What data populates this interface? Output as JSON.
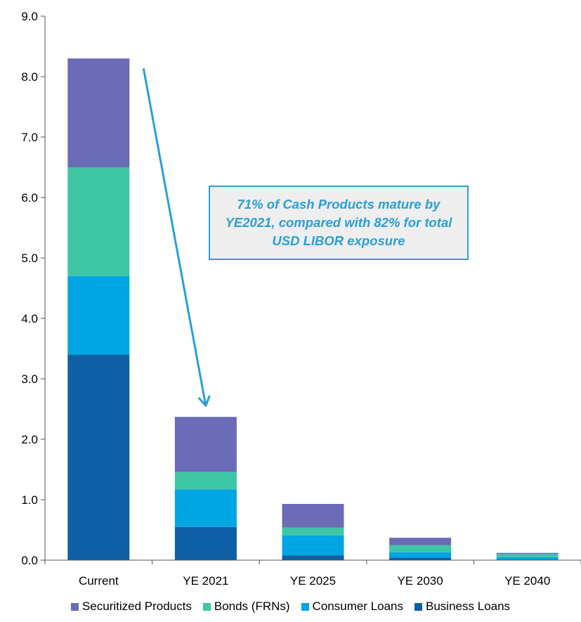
{
  "chart_data": {
    "type": "bar",
    "stacked": true,
    "categories": [
      "Current",
      "YE 2021",
      "YE 2025",
      "YE 2030",
      "YE 2040"
    ],
    "series": [
      {
        "name": "Business Loans",
        "color": "#0f5fa6",
        "values": [
          3.4,
          0.55,
          0.08,
          0.04,
          0.01
        ]
      },
      {
        "name": "Consumer Loans",
        "color": "#00a5e3",
        "values": [
          1.3,
          0.62,
          0.33,
          0.09,
          0.04
        ]
      },
      {
        "name": "Bonds (FRNs)",
        "color": "#3ec6a5",
        "values": [
          1.8,
          0.29,
          0.13,
          0.12,
          0.05
        ]
      },
      {
        "name": "Securitized Products",
        "color": "#6b6bb7",
        "values": [
          1.8,
          0.91,
          0.39,
          0.12,
          0.02
        ]
      }
    ],
    "legend_order": [
      "Securitized Products",
      "Bonds (FRNs)",
      "Consumer Loans",
      "Business Loans"
    ],
    "ylim": [
      0,
      9
    ],
    "yticks": [
      "0.0",
      "1.0",
      "2.0",
      "3.0",
      "4.0",
      "5.0",
      "6.0",
      "7.0",
      "8.0",
      "9.0"
    ],
    "grid": false,
    "legend_position": "bottom",
    "annotation": {
      "text": "71% of Cash Products mature by YE2021, compared with 82% for total USD LIBOR exposure",
      "arrow_from": "Current",
      "arrow_to": "YE 2021",
      "color": "#2a9fd8"
    }
  }
}
